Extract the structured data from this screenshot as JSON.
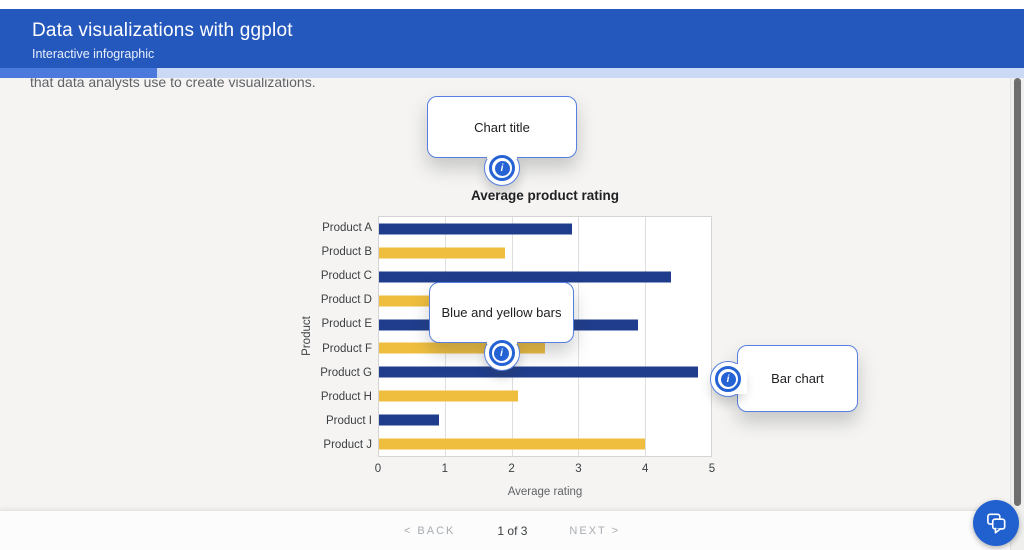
{
  "header": {
    "title": "Data visualizations with ggplot",
    "subtitle": "Interactive infographic"
  },
  "content": {
    "clipped_paragraph": "that data analysts use to create visualizations."
  },
  "callouts": {
    "chart_title": {
      "label": "Chart title"
    },
    "bars": {
      "label": "Blue and yellow bars"
    },
    "bar_chart": {
      "label": "Bar chart"
    }
  },
  "icons": {
    "info_glyph": "i"
  },
  "chart_data": {
    "type": "bar",
    "orientation": "horizontal",
    "title": "Average product rating",
    "xlabel": "Average rating",
    "ylabel": "Product",
    "xlim": [
      0,
      5
    ],
    "xticks": [
      0,
      1,
      2,
      3,
      4,
      5
    ],
    "grid": "vertical",
    "categories": [
      "Product A",
      "Product B",
      "Product C",
      "Product D",
      "Product E",
      "Product F",
      "Product G",
      "Product H",
      "Product I",
      "Product J"
    ],
    "values": [
      2.9,
      1.9,
      4.4,
      1.5,
      3.9,
      2.5,
      4.8,
      2.1,
      0.9,
      4.0
    ],
    "bar_colors": [
      "#1f3d8c",
      "#efbe3e",
      "#1f3d8c",
      "#efbe3e",
      "#1f3d8c",
      "#efbe3e",
      "#1f3d8c",
      "#efbe3e",
      "#1f3d8c",
      "#efbe3e"
    ]
  },
  "footer": {
    "back": "< BACK",
    "page": "1 of 3",
    "next": "NEXT >"
  },
  "colors": {
    "header_bg": "#2558bd",
    "peek_fill": "#4b79dc",
    "peek_track": "#ccd9f5",
    "bar_blue": "#1f3d8c",
    "bar_yellow": "#efbe3e",
    "accent_blue": "#2563d4",
    "callout_border": "#567fdf",
    "fab_bg": "#2161cf"
  }
}
